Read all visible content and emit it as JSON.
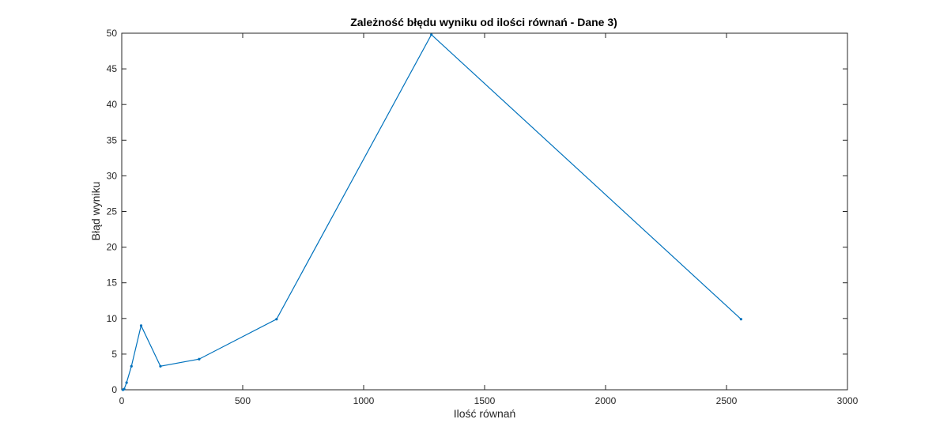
{
  "chart_data": {
    "type": "line",
    "title": "Zależność błędu wyniku od ilości równań - Dane 3)",
    "xlabel": "Ilość równań",
    "ylabel": "Błąd wyniku",
    "xlim": [
      0,
      3000
    ],
    "ylim": [
      0,
      50
    ],
    "xticks": [
      0,
      500,
      1000,
      1500,
      2000,
      2500,
      3000
    ],
    "yticks": [
      0,
      5,
      10,
      15,
      20,
      25,
      30,
      35,
      40,
      45,
      50
    ],
    "grid": false,
    "series": [
      {
        "color": "#0072BD",
        "x": [
          5,
          10,
          20,
          40,
          80,
          160,
          320,
          640,
          1280,
          2560
        ],
        "y": [
          0.0,
          0.1,
          1.0,
          3.3,
          9.0,
          3.3,
          4.3,
          9.9,
          49.8,
          9.9
        ]
      }
    ]
  }
}
